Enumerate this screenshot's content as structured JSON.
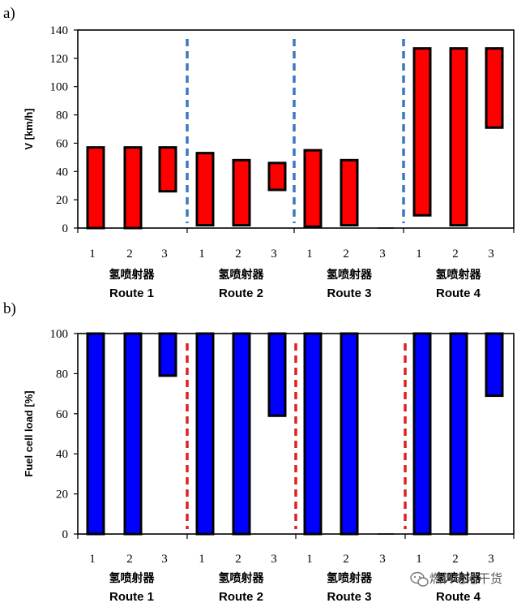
{
  "chart_data": [
    {
      "panel_label": "a)",
      "type": "bar",
      "style": "floating-range",
      "ylabel": "V [km/h]",
      "ylim": [
        0,
        140
      ],
      "yticks": [
        0,
        20,
        40,
        60,
        80,
        100,
        120,
        140
      ],
      "bar_color": "#ff0000",
      "divider_color": "#3a78c2",
      "groups": [
        {
          "label_cn": "氢喷射器",
          "label": "Route 1",
          "categories": [
            "1",
            "2",
            "3"
          ],
          "ranges": [
            [
              0,
              57
            ],
            [
              0,
              57
            ],
            [
              26,
              57
            ]
          ]
        },
        {
          "label_cn": "氢喷射器",
          "label": "Route 2",
          "categories": [
            "1",
            "2",
            "3"
          ],
          "ranges": [
            [
              2,
              53
            ],
            [
              2,
              48
            ],
            [
              27,
              46
            ]
          ]
        },
        {
          "label_cn": "氢喷射器",
          "label": "Route 3",
          "categories": [
            "1",
            "2",
            "3"
          ],
          "ranges": [
            [
              1,
              55
            ],
            [
              2,
              48
            ],
            [
              0,
              0
            ]
          ]
        },
        {
          "label_cn": "氢喷射器",
          "label": "Route 4",
          "categories": [
            "1",
            "2",
            "3"
          ],
          "ranges": [
            [
              9,
              127
            ],
            [
              2,
              127
            ],
            [
              71,
              127
            ]
          ]
        }
      ]
    },
    {
      "panel_label": "b)",
      "type": "bar",
      "style": "hanging",
      "ylabel": "Fuel cell load  [%]",
      "ylim": [
        0,
        100
      ],
      "yticks": [
        0,
        20,
        40,
        60,
        80,
        100
      ],
      "bar_color": "#0000ff",
      "divider_color": "#e02020",
      "groups": [
        {
          "label_cn": "氢喷射器",
          "label": "Route 1",
          "categories": [
            "1",
            "2",
            "3"
          ],
          "ranges": [
            [
              0,
              100
            ],
            [
              0,
              100
            ],
            [
              79,
              100
            ]
          ]
        },
        {
          "label_cn": "氢喷射器",
          "label": "Route 2",
          "categories": [
            "1",
            "2",
            "3"
          ],
          "ranges": [
            [
              0,
              100
            ],
            [
              0,
              100
            ],
            [
              59,
              100
            ]
          ]
        },
        {
          "label_cn": "氢喷射器",
          "label": "Route 3",
          "categories": [
            "1",
            "2",
            "3"
          ],
          "ranges": [
            [
              0,
              100
            ],
            [
              0,
              100
            ],
            [
              0,
              0
            ]
          ]
        },
        {
          "label_cn": "氢喷射器",
          "label": "Route 4",
          "categories": [
            "1",
            "2",
            "3"
          ],
          "ranges": [
            [
              0,
              100
            ],
            [
              0,
              100
            ],
            [
              69,
              100
            ]
          ]
        }
      ]
    }
  ],
  "watermark": {
    "text": "燃料电池干货",
    "icon": "wechat-icon"
  }
}
